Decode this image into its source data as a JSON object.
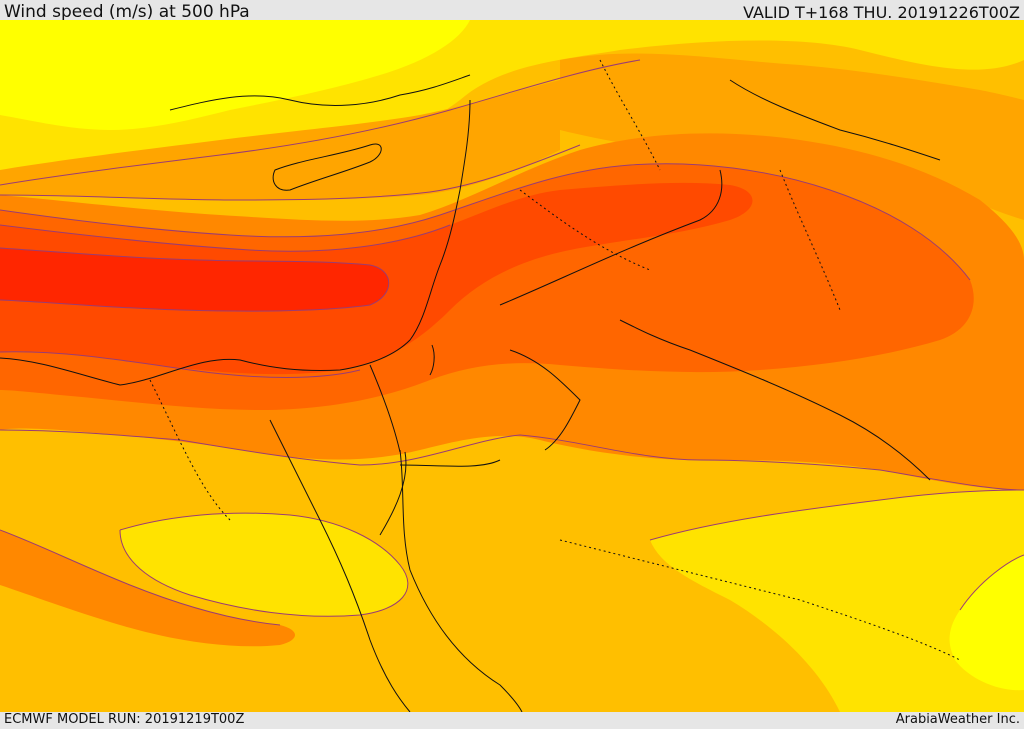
{
  "header": {
    "title": "Wind speed (m/s) at 500 hPa",
    "valid": "VALID T+168 THU. 20191226T00Z"
  },
  "footer": {
    "model_run": "ECMWF MODEL RUN: 20191219T00Z",
    "credit": "ArabiaWeather Inc."
  },
  "colors": {
    "band_1": "#ffff00",
    "band_2": "#ffe300",
    "band_3": "#ffbf00",
    "band_4": "#ffa500",
    "band_5": "#ff8800",
    "band_6": "#ff6600",
    "band_7": "#ff4a00",
    "band_8": "#ff2600",
    "contour_line": "#9b3c73",
    "coastline": "#111111"
  }
}
